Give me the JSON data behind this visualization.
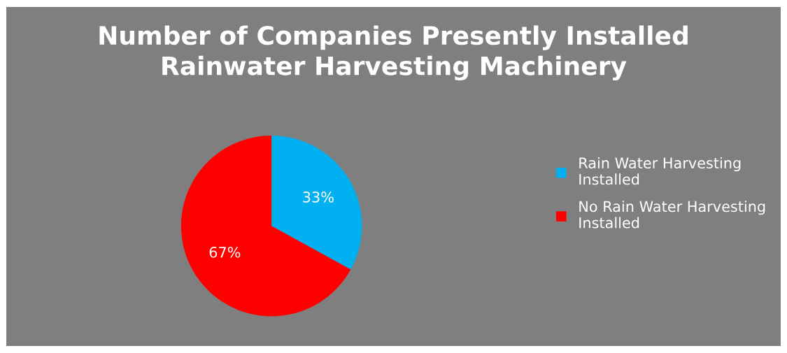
{
  "chart_data": {
    "type": "pie",
    "title": "Number of Companies Presently Installed\nRainwater Harvesting Machinery",
    "categories": [
      "Rain Water Harvesting\nInstalled",
      "No Rain Water Harvesting\nInstalled"
    ],
    "values": [
      33,
      67
    ],
    "colors": [
      "#00b0f0",
      "#ff0000"
    ],
    "value_labels": [
      "33%",
      "67%"
    ],
    "legend": "right"
  }
}
